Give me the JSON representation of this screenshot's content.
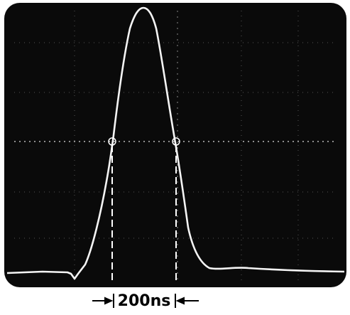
{
  "annotation": {
    "label": "200ns"
  }
}
